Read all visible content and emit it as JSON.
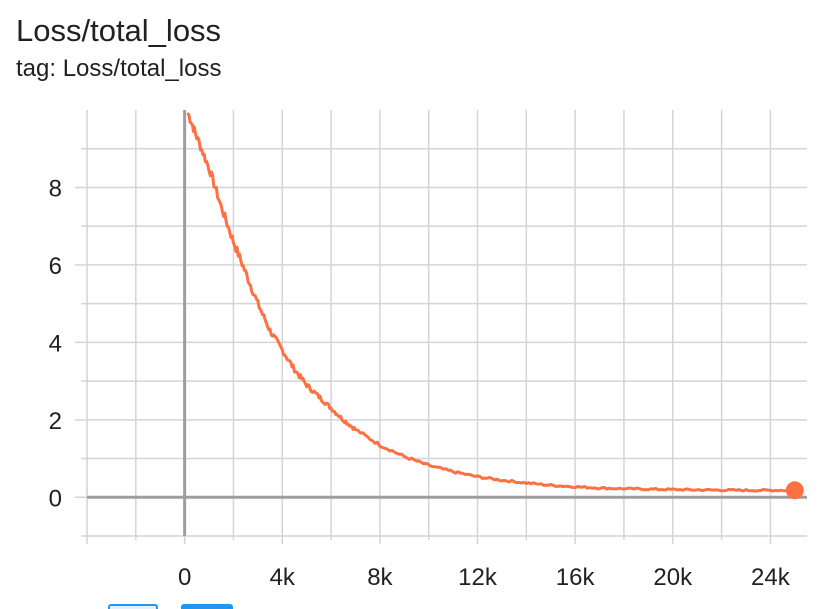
{
  "header": {
    "title": "Loss/total_loss",
    "tag_line": "tag: Loss/total_loss"
  },
  "chart_data": {
    "type": "line",
    "title": "Loss/total_loss",
    "xlabel": "",
    "ylabel": "",
    "xlim": [
      -4000,
      25500
    ],
    "ylim": [
      -1,
      10
    ],
    "x_ticks": [
      0,
      4000,
      8000,
      12000,
      16000,
      20000,
      24000
    ],
    "x_tick_labels": [
      "0",
      "4k",
      "8k",
      "12k",
      "16k",
      "20k",
      "24k"
    ],
    "y_ticks": [
      0,
      2,
      4,
      6,
      8
    ],
    "y_tick_labels": [
      "0",
      "2",
      "4",
      "6",
      "8"
    ],
    "grid": true,
    "series": [
      {
        "x": [
          150,
          500,
          1000,
          1500,
          2000,
          2500,
          3000,
          3500,
          4000,
          4500,
          5000,
          5500,
          6000,
          6500,
          7000,
          8000,
          9000,
          10000,
          11000,
          12000,
          13000,
          14000,
          15000,
          16000,
          17000,
          18000,
          19000,
          20000,
          21000,
          22000,
          23000,
          24000,
          25000
        ],
        "y": [
          9.9,
          9.3,
          8.5,
          7.5,
          6.6,
          5.8,
          5.0,
          4.3,
          3.8,
          3.3,
          2.9,
          2.6,
          2.3,
          2.0,
          1.75,
          1.35,
          1.05,
          0.82,
          0.66,
          0.53,
          0.44,
          0.37,
          0.31,
          0.27,
          0.24,
          0.22,
          0.21,
          0.2,
          0.19,
          0.185,
          0.18,
          0.18,
          0.18
        ],
        "color": "#ff7043"
      }
    ],
    "colors": {
      "line": "#ff7043",
      "grid": "#d4d4d4",
      "axis": "#9e9e9e"
    }
  },
  "controls": {
    "icons": [
      "fit-domain-icon",
      "toggle-log-scale-icon"
    ]
  }
}
